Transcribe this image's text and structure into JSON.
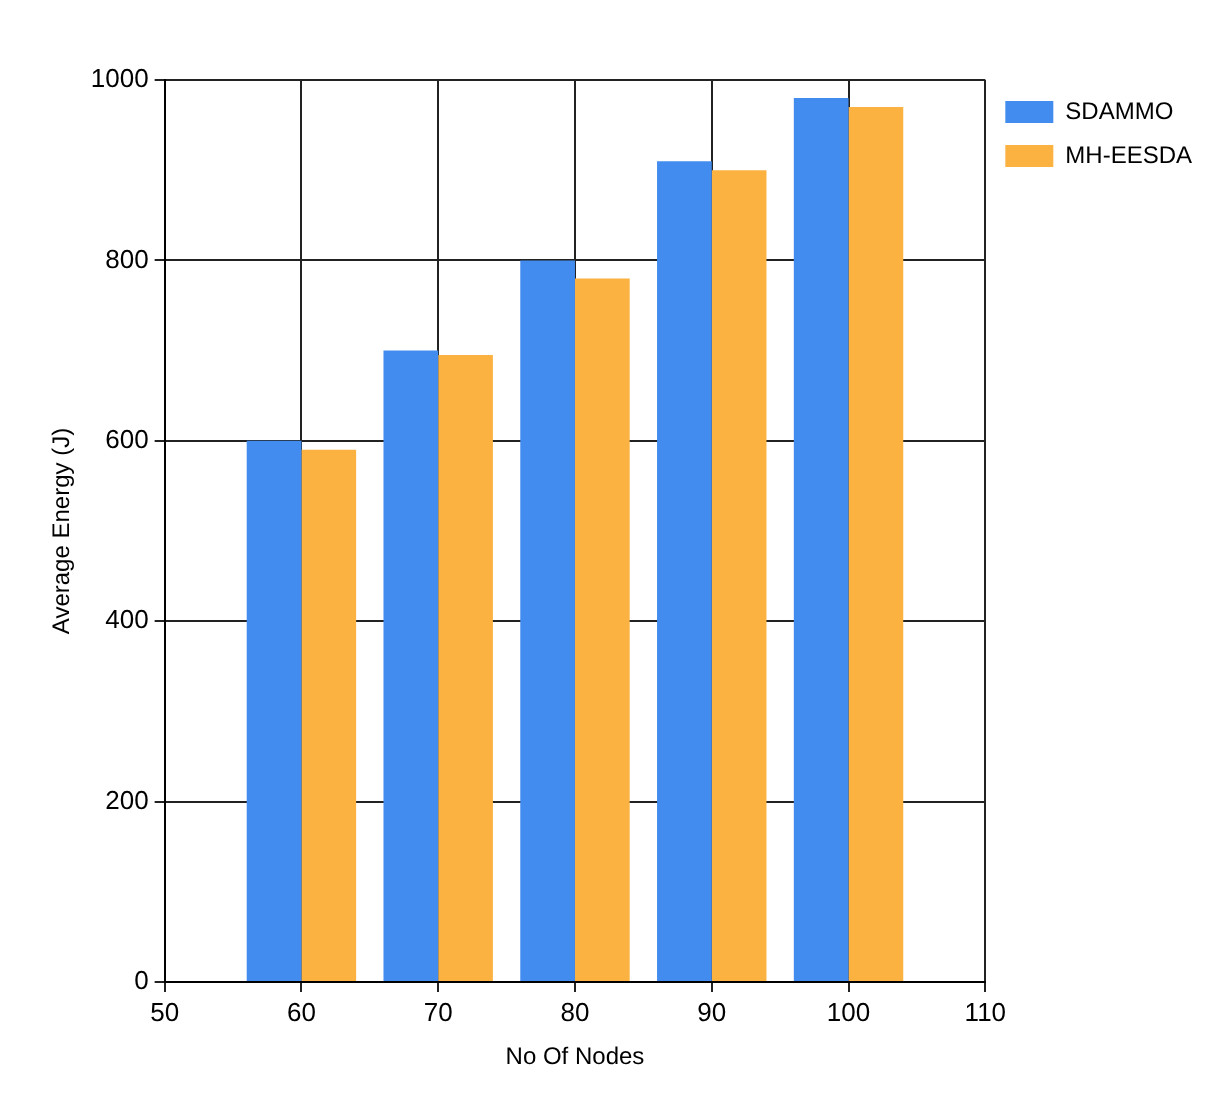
{
  "chart_data": {
    "type": "bar",
    "xlabel": "No Of Nodes",
    "ylabel": "Average Energy (J)",
    "x": [
      60,
      70,
      80,
      90,
      100
    ],
    "series": [
      {
        "name": "SDAMMO",
        "color": "#428bef",
        "values": [
          600,
          700,
          800,
          910,
          980
        ]
      },
      {
        "name": "MH-EESDA",
        "color": "#fbb241",
        "values": [
          590,
          695,
          780,
          900,
          970
        ]
      }
    ],
    "xlim": [
      50,
      110
    ],
    "xticks": [
      50,
      60,
      70,
      80,
      90,
      100,
      110
    ],
    "ylim": [
      0,
      1000
    ],
    "yticks": [
      0,
      200,
      400,
      600,
      800,
      1000
    ],
    "grid": true,
    "legend": "top right"
  }
}
